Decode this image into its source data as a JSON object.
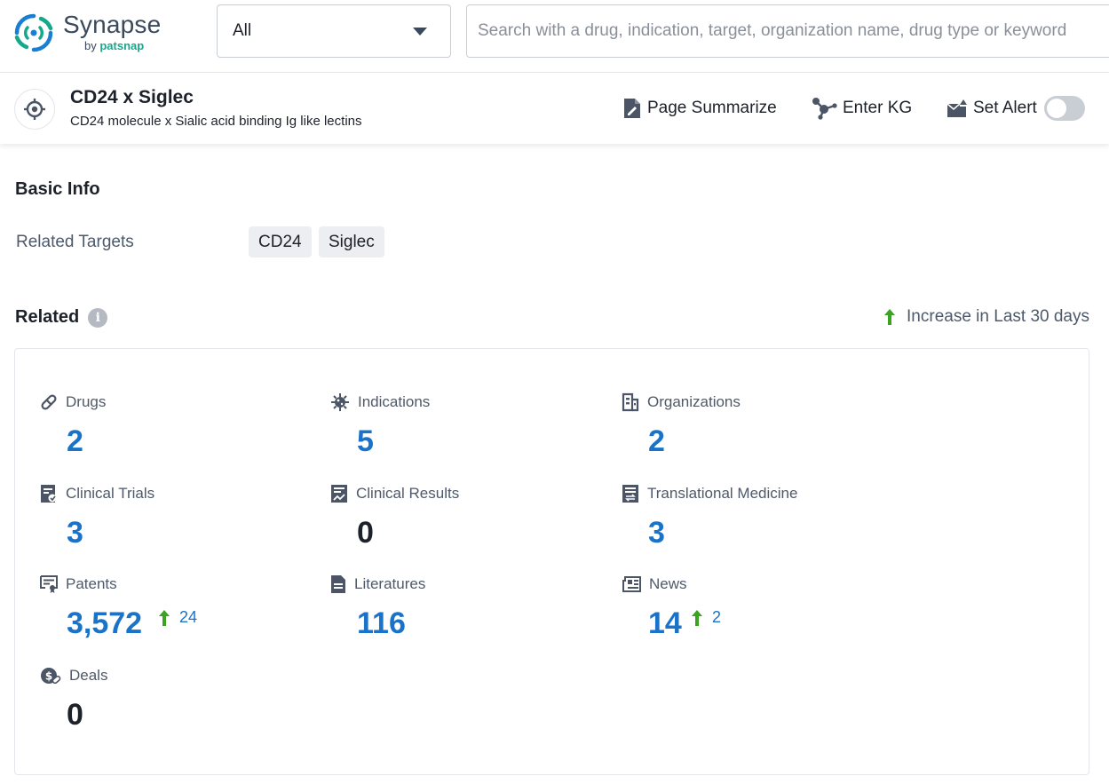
{
  "brand": {
    "name": "Synapse",
    "by_prefix": "by",
    "by_name": "patsnap"
  },
  "search": {
    "scope": "All",
    "placeholder": "Search with a drug, indication, target, organization name, drug type or keyword"
  },
  "entity": {
    "title": "CD24 x Siglec",
    "subtitle": "CD24 molecule x Sialic acid binding Ig like lectins",
    "actions": {
      "summarize": "Page Summarize",
      "kg": "Enter KG",
      "alert": "Set Alert"
    },
    "alert_enabled": false
  },
  "basic_info": {
    "title": "Basic Info",
    "related_targets_label": "Related Targets",
    "targets": [
      "CD24",
      "Siglec"
    ]
  },
  "related": {
    "title": "Related",
    "legend": "Increase in Last 30 days",
    "stats": [
      {
        "label": "Drugs",
        "value": "2",
        "icon": "pill-icon"
      },
      {
        "label": "Indications",
        "value": "5",
        "icon": "virus-icon"
      },
      {
        "label": "Organizations",
        "value": "2",
        "icon": "building-icon"
      },
      {
        "label": "Clinical Trials",
        "value": "3",
        "icon": "clinical-trials-icon"
      },
      {
        "label": "Clinical Results",
        "value": "0",
        "icon": "clinical-results-icon"
      },
      {
        "label": "Translational Medicine",
        "value": "3",
        "icon": "translational-medicine-icon"
      },
      {
        "label": "Patents",
        "value": "3,572",
        "increase": "24",
        "icon": "patent-icon"
      },
      {
        "label": "Literatures",
        "value": "116",
        "icon": "literature-icon"
      },
      {
        "label": "News",
        "value": "14",
        "increase": "2",
        "icon": "news-icon"
      },
      {
        "label": "Deals",
        "value": "0",
        "icon": "deals-icon"
      }
    ]
  },
  "colors": {
    "link_blue": "#1a73c8",
    "increase_green": "#3aa31f",
    "brand_teal": "#17a88b",
    "brand_blue": "#1a7fd4",
    "icon_gray": "#4b5566"
  }
}
